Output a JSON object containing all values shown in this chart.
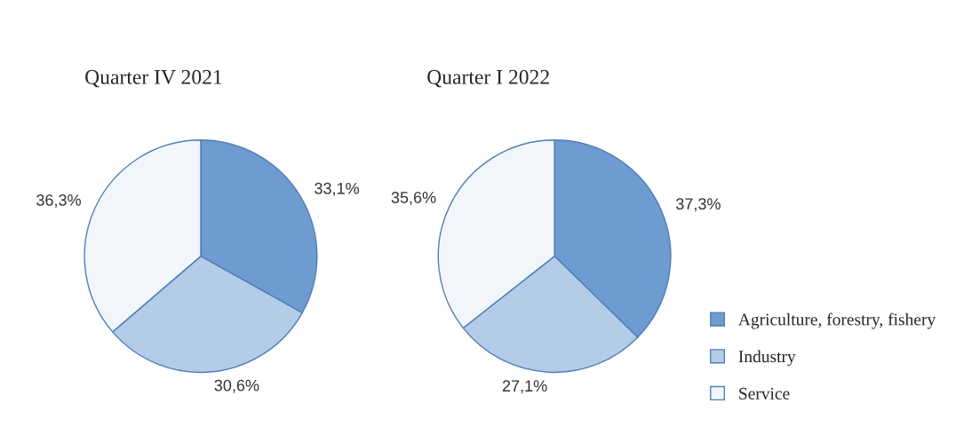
{
  "chart_data": [
    {
      "type": "pie",
      "title": "Quarter IV 2021",
      "categories": [
        "Agriculture, forestry, fishery",
        "Industry",
        "Service"
      ],
      "values": [
        33.1,
        30.6,
        36.3
      ],
      "value_labels": [
        "33,1%",
        "30,6%",
        "36,3%"
      ],
      "colors": [
        "#6e9bd0",
        "#b4cce8",
        "#f2f6fb"
      ],
      "legend": "right"
    },
    {
      "type": "pie",
      "title": "Quarter I 2022",
      "values": [
        37.3,
        27.1,
        35.6
      ],
      "value_labels": [
        "37,3%",
        "27,1%",
        "35,6%"
      ],
      "colors": [
        "#6e9bd0",
        "#b4cce8",
        "#f2f6fb"
      ]
    }
  ]
}
